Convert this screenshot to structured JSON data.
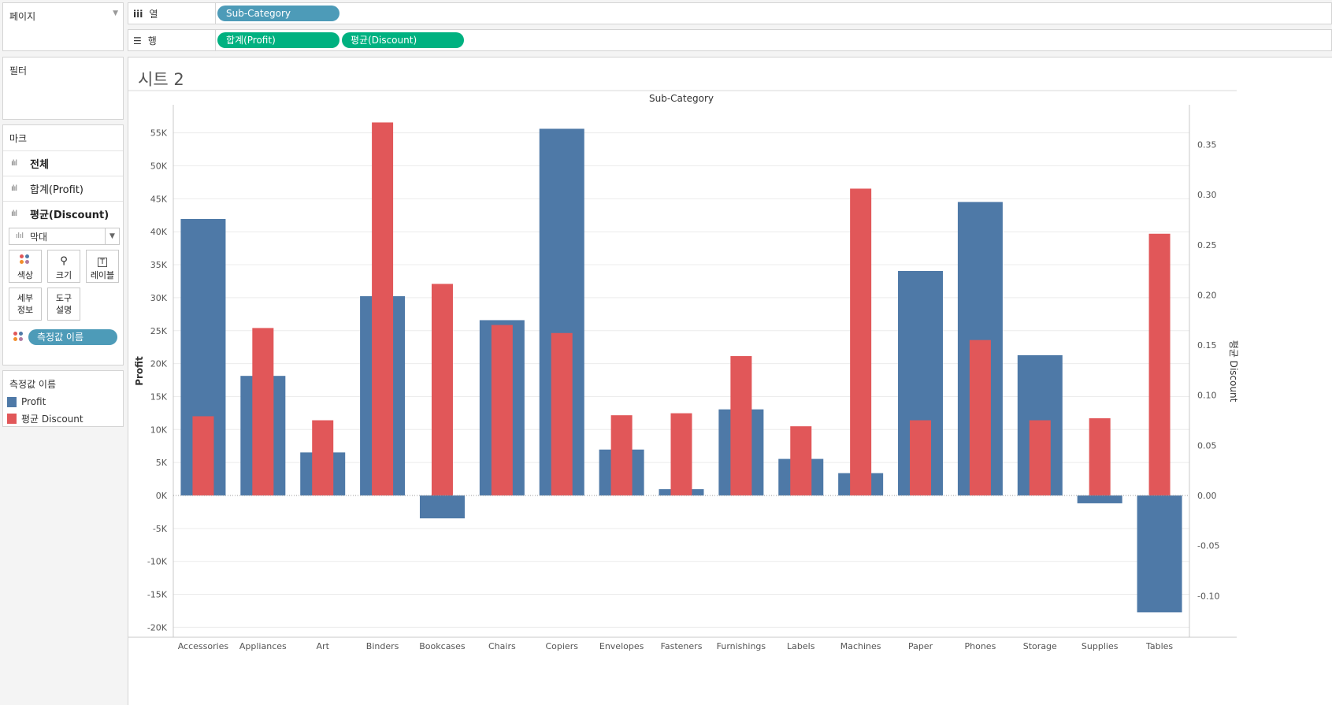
{
  "left_panel": {
    "pages_label": "페이지",
    "filters_label": "필터",
    "marks_label": "마크",
    "mark_rows": [
      "전체",
      "합계(Profit)",
      "평균(Discount)"
    ],
    "mark_type": "막대",
    "buttons": {
      "color": "색상",
      "size": "크기",
      "label": "레이블",
      "detail_line1": "세부",
      "detail_line2": "정보",
      "tooltip_line1": "도구",
      "tooltip_line2": "설명"
    },
    "measure_pill": "측정값 이름",
    "legend": {
      "title": "측정값 이름",
      "items": [
        {
          "label": "Profit",
          "color": "#4e79a7"
        },
        {
          "label": "평균 Discount",
          "color": "#e15759"
        }
      ]
    }
  },
  "shelves": {
    "columns_label": "열",
    "columns_pill": "Sub-Category",
    "rows_label": "행",
    "rows_pills": [
      "합계(Profit)",
      "평균(Discount)"
    ]
  },
  "sheet": {
    "title": "시트 2"
  },
  "chart_data": {
    "type": "bar",
    "header": "Sub-Category",
    "categories": [
      "Accessories",
      "Appliances",
      "Art",
      "Binders",
      "Bookcases",
      "Chairs",
      "Copiers",
      "Envelopes",
      "Fasteners",
      "Furnishings",
      "Labels",
      "Machines",
      "Paper",
      "Phones",
      "Storage",
      "Supplies",
      "Tables"
    ],
    "series": [
      {
        "name": "Profit",
        "axis": "left",
        "color": "#4e79a7",
        "values": [
          41937,
          18138,
          6528,
          30222,
          -3473,
          26590,
          55618,
          6964,
          950,
          13059,
          5546,
          3385,
          34054,
          44516,
          21279,
          -1189,
          -17725
        ]
      },
      {
        "name": "평균 Discount",
        "axis": "right",
        "color": "#e15759",
        "values": [
          0.079,
          0.167,
          0.075,
          0.372,
          0.211,
          0.17,
          0.162,
          0.08,
          0.082,
          0.139,
          0.069,
          0.306,
          0.075,
          0.155,
          0.075,
          0.077,
          0.261
        ]
      }
    ],
    "left_axis": {
      "label": "Profit",
      "min": -20000,
      "max": 58000,
      "ticks": [
        55000,
        50000,
        45000,
        40000,
        35000,
        30000,
        25000,
        20000,
        15000,
        10000,
        5000,
        0,
        -5000,
        -10000,
        -15000,
        -20000
      ],
      "tick_labels": [
        "55K",
        "50K",
        "45K",
        "40K",
        "35K",
        "30K",
        "25K",
        "20K",
        "15K",
        "10K",
        "5K",
        "0K",
        "-5K",
        "-10K",
        "-15K",
        "-20K"
      ]
    },
    "right_axis": {
      "label": "평균 Discount",
      "ticks": [
        0.35,
        0.3,
        0.25,
        0.2,
        0.15,
        0.1,
        0.05,
        0.0,
        -0.05,
        -0.1
      ],
      "tick_labels": [
        "0.35",
        "0.30",
        "0.25",
        "0.20",
        "0.15",
        "0.10",
        "0.05",
        "0.00",
        "-0.05",
        "-0.10"
      ]
    },
    "grid": true
  }
}
